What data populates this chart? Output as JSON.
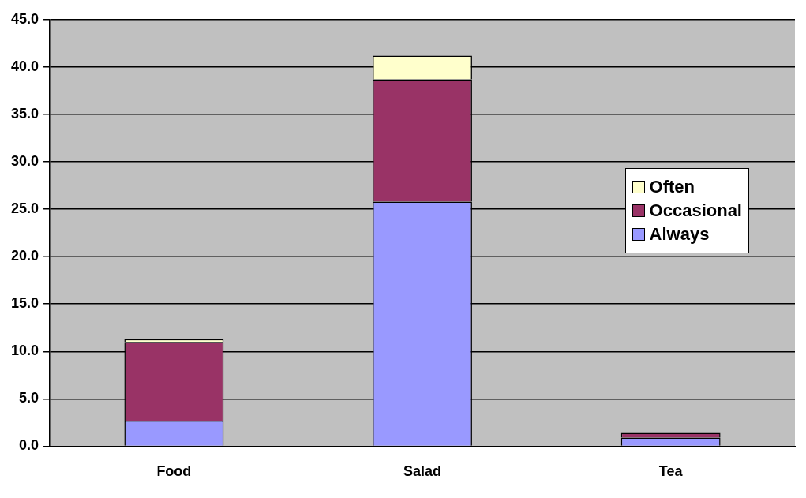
{
  "chart_data": {
    "type": "bar",
    "stacked": true,
    "categories": [
      "Food",
      "Salad",
      "Tea"
    ],
    "series": [
      {
        "name": "Always",
        "color": "#9999ff",
        "values": [
          2.7,
          25.8,
          0.9
        ]
      },
      {
        "name": "Occasional",
        "color": "#993366",
        "values": [
          8.3,
          12.9,
          0.5
        ]
      },
      {
        "name": "Often",
        "color": "#ffffcc",
        "values": [
          0.3,
          2.5,
          0
        ]
      }
    ],
    "ylim": [
      0,
      45
    ],
    "yticks": [
      {
        "value": 0,
        "label": "0.0"
      },
      {
        "value": 5,
        "label": "5.0"
      },
      {
        "value": 10,
        "label": "10.0"
      },
      {
        "value": 15,
        "label": "15.0"
      },
      {
        "value": 20,
        "label": "20.0"
      },
      {
        "value": 25,
        "label": "25.0"
      },
      {
        "value": 30,
        "label": "30.0"
      },
      {
        "value": 35,
        "label": "35.0"
      },
      {
        "value": 40,
        "label": "40.0"
      },
      {
        "value": 45,
        "label": "45.0"
      }
    ],
    "grid": "y",
    "legend": "right"
  }
}
